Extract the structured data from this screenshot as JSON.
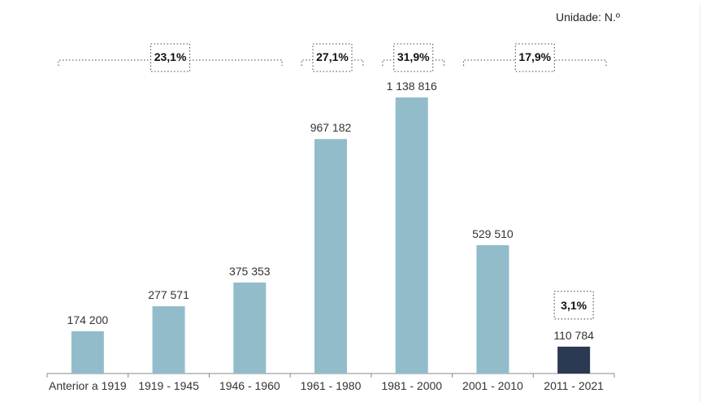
{
  "unit_label": "Unidade: N.º",
  "chart_data": {
    "type": "bar",
    "title": "",
    "xlabel": "",
    "ylabel": "",
    "ylim": [
      0,
      1138816
    ],
    "grid": false,
    "categories": [
      "Anterior a 1919",
      "1919 - 1945",
      "1946 - 1960",
      "1961 - 1980",
      "1981 - 2000",
      "2001 - 2010",
      "2011 - 2021"
    ],
    "values": [
      174200,
      277571,
      375353,
      967182,
      1138816,
      529510,
      110784
    ],
    "value_labels": [
      "174 200",
      "277 571",
      "375 353",
      "967 182",
      "1 138 816",
      "529 510",
      "110 784"
    ],
    "colors": [
      "#93bccb",
      "#93bccb",
      "#93bccb",
      "#93bccb",
      "#93bccb",
      "#93bccb",
      "#2b3a52"
    ],
    "group_annotations": [
      {
        "label": "23,1%",
        "from_category": 0,
        "to_category": 2
      },
      {
        "label": "27,1%",
        "from_category": 3,
        "to_category": 3
      },
      {
        "label": "31,9%",
        "from_category": 4,
        "to_category": 4
      },
      {
        "label": "17,9%",
        "from_category": 5,
        "to_category": 6
      },
      {
        "label": "3,1%",
        "from_category": 6,
        "to_category": 6,
        "boxed_above_bar": true
      }
    ]
  }
}
